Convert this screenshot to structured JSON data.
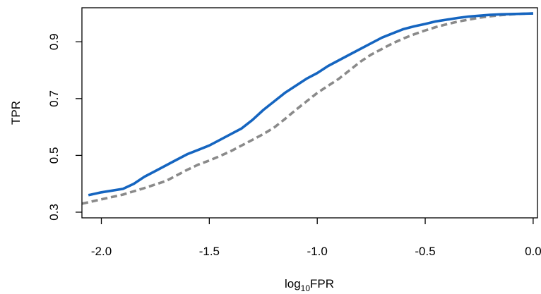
{
  "chart_data": {
    "type": "line",
    "title": "",
    "xlabel": {
      "base": "log",
      "sub": "10",
      "rest": "FPR"
    },
    "ylabel": "TPR",
    "xlim": [
      -2.09,
      0.02
    ],
    "ylim": [
      0.28,
      1.02
    ],
    "xticks": [
      -2.0,
      -1.5,
      -1.0,
      -0.5,
      0.0
    ],
    "xtick_labels": [
      "-2.0",
      "-1.5",
      "-1.0",
      "-0.5",
      "0.0"
    ],
    "yticks": [
      0.3,
      0.5,
      0.7,
      0.9
    ],
    "ytick_labels": [
      "0.3",
      "0.5",
      "0.7",
      "0.9"
    ],
    "grid": false,
    "legend": "none",
    "series": [
      {
        "color": "#1565c0",
        "style": "solid",
        "x": [
          -2.06,
          -2.0,
          -1.9,
          -1.85,
          -1.8,
          -1.75,
          -1.7,
          -1.65,
          -1.6,
          -1.55,
          -1.5,
          -1.45,
          -1.4,
          -1.35,
          -1.3,
          -1.25,
          -1.2,
          -1.15,
          -1.1,
          -1.05,
          -1.0,
          -0.95,
          -0.9,
          -0.85,
          -0.8,
          -0.75,
          -0.7,
          -0.65,
          -0.6,
          -0.55,
          -0.5,
          -0.45,
          -0.4,
          -0.35,
          -0.3,
          -0.25,
          -0.2,
          -0.15,
          -0.1,
          -0.05,
          0.0
        ],
        "y": [
          0.36,
          0.37,
          0.382,
          0.4,
          0.425,
          0.445,
          0.465,
          0.485,
          0.505,
          0.52,
          0.535,
          0.555,
          0.575,
          0.595,
          0.625,
          0.66,
          0.69,
          0.72,
          0.745,
          0.77,
          0.79,
          0.815,
          0.835,
          0.855,
          0.875,
          0.895,
          0.915,
          0.93,
          0.945,
          0.955,
          0.963,
          0.972,
          0.978,
          0.984,
          0.989,
          0.992,
          0.995,
          0.997,
          0.998,
          0.999,
          1.0
        ]
      },
      {
        "color": "#8a8a8a",
        "style": "dashed",
        "x": [
          -2.09,
          -2.0,
          -1.9,
          -1.8,
          -1.7,
          -1.65,
          -1.6,
          -1.55,
          -1.5,
          -1.45,
          -1.4,
          -1.35,
          -1.3,
          -1.25,
          -1.2,
          -1.15,
          -1.1,
          -1.05,
          -1.0,
          -0.95,
          -0.9,
          -0.85,
          -0.8,
          -0.75,
          -0.7,
          -0.65,
          -0.6,
          -0.55,
          -0.5,
          -0.45,
          -0.4,
          -0.35,
          -0.3,
          -0.25,
          -0.2,
          -0.15,
          -0.1,
          -0.05,
          0.0
        ],
        "y": [
          0.33,
          0.345,
          0.362,
          0.385,
          0.41,
          0.43,
          0.45,
          0.468,
          0.482,
          0.498,
          0.515,
          0.535,
          0.555,
          0.575,
          0.598,
          0.628,
          0.66,
          0.69,
          0.72,
          0.745,
          0.77,
          0.8,
          0.83,
          0.855,
          0.875,
          0.895,
          0.912,
          0.927,
          0.94,
          0.952,
          0.962,
          0.971,
          0.978,
          0.985,
          0.99,
          0.994,
          0.997,
          0.999,
          1.0
        ]
      }
    ]
  }
}
